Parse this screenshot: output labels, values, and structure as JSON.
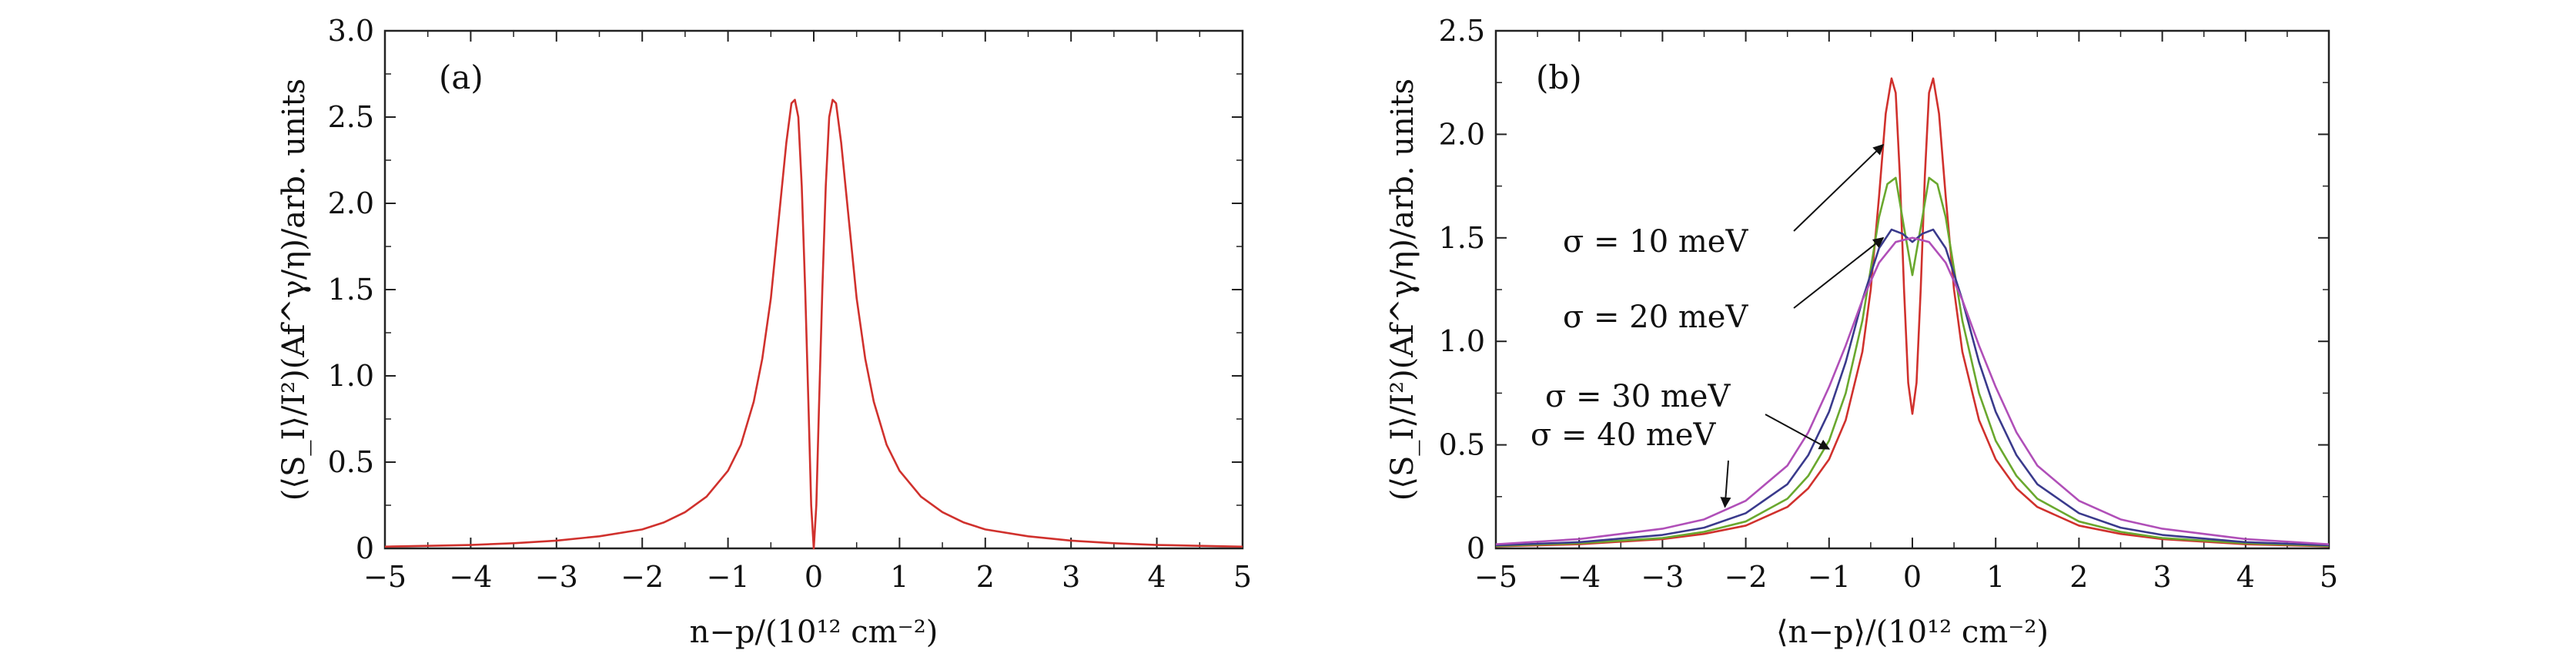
{
  "chart_data": [
    {
      "type": "line",
      "panel_label": "(a)",
      "xlabel": "n−p/(10¹² cm⁻²)",
      "ylabel": "(⟨S_I⟩/I²)(Af^γ/η)/arb. units",
      "xlim": [
        -5,
        5
      ],
      "ylim": [
        0,
        3.0
      ],
      "x_ticks": [
        -5,
        -4,
        -3,
        -2,
        -1,
        0,
        1,
        2,
        3,
        4,
        5
      ],
      "x_tick_labels": [
        "−5",
        "−4",
        "−3",
        "−2",
        "−1",
        "0",
        "1",
        "2",
        "3",
        "4",
        "5"
      ],
      "y_ticks": [
        0,
        0.5,
        1.0,
        1.5,
        2.0,
        2.5,
        3.0
      ],
      "y_tick_labels": [
        "0",
        "0.5",
        "1.0",
        "1.5",
        "2.0",
        "2.5",
        "3.0"
      ],
      "grid": false,
      "series": [
        {
          "color": "#d0312d",
          "x": [
            -5,
            -4.5,
            -4,
            -3.5,
            -3,
            -2.5,
            -2,
            -1.75,
            -1.5,
            -1.25,
            -1,
            -0.85,
            -0.7,
            -0.6,
            -0.5,
            -0.4,
            -0.32,
            -0.26,
            -0.22,
            -0.18,
            -0.14,
            -0.1,
            -0.06,
            -0.03,
            0,
            0.03,
            0.06,
            0.1,
            0.14,
            0.18,
            0.22,
            0.26,
            0.32,
            0.4,
            0.5,
            0.6,
            0.7,
            0.85,
            1,
            1.25,
            1.5,
            1.75,
            2,
            2.5,
            3,
            3.5,
            4,
            4.5,
            5
          ],
          "y": [
            0.01,
            0.015,
            0.02,
            0.03,
            0.045,
            0.07,
            0.11,
            0.15,
            0.21,
            0.3,
            0.45,
            0.6,
            0.85,
            1.1,
            1.45,
            1.95,
            2.35,
            2.58,
            2.6,
            2.5,
            2.1,
            1.5,
            0.8,
            0.25,
            0.0,
            0.25,
            0.8,
            1.5,
            2.1,
            2.5,
            2.6,
            2.58,
            2.35,
            1.95,
            1.45,
            1.1,
            0.85,
            0.6,
            0.45,
            0.3,
            0.21,
            0.15,
            0.11,
            0.07,
            0.045,
            0.03,
            0.02,
            0.015,
            0.01
          ]
        }
      ]
    },
    {
      "type": "line",
      "panel_label": "(b)",
      "xlabel": "⟨n−p⟩/(10¹² cm⁻²)",
      "ylabel": "(⟨S_I⟩/I²)(Af^γ/η)/arb. units",
      "xlim": [
        -5,
        5
      ],
      "ylim": [
        0,
        2.5
      ],
      "x_ticks": [
        -5,
        -4,
        -3,
        -2,
        -1,
        0,
        1,
        2,
        3,
        4,
        5
      ],
      "x_tick_labels": [
        "−5",
        "−4",
        "−3",
        "−2",
        "−1",
        "0",
        "1",
        "2",
        "3",
        "4",
        "5"
      ],
      "y_ticks": [
        0,
        0.5,
        1.0,
        1.5,
        2.0,
        2.5
      ],
      "y_tick_labels": [
        "0",
        "0.5",
        "1.0",
        "1.5",
        "2.0",
        "2.5"
      ],
      "grid": false,
      "series": [
        {
          "name": "σ = 10 meV",
          "color": "#d0312d",
          "x": [
            -5,
            -4,
            -3,
            -2.5,
            -2,
            -1.5,
            -1.25,
            -1,
            -0.8,
            -0.6,
            -0.5,
            -0.4,
            -0.32,
            -0.25,
            -0.2,
            -0.15,
            -0.1,
            -0.05,
            0,
            0.05,
            0.1,
            0.15,
            0.2,
            0.25,
            0.32,
            0.4,
            0.5,
            0.6,
            0.8,
            1,
            1.25,
            1.5,
            2,
            2.5,
            3,
            4,
            5
          ],
          "y": [
            0.01,
            0.02,
            0.045,
            0.07,
            0.11,
            0.2,
            0.29,
            0.43,
            0.62,
            0.95,
            1.25,
            1.7,
            2.1,
            2.27,
            2.2,
            1.8,
            1.25,
            0.8,
            0.65,
            0.8,
            1.25,
            1.8,
            2.2,
            2.27,
            2.1,
            1.7,
            1.25,
            0.95,
            0.62,
            0.43,
            0.29,
            0.2,
            0.11,
            0.07,
            0.045,
            0.02,
            0.01
          ]
        },
        {
          "name": "σ = 20 meV",
          "color": "#6aa82e",
          "x": [
            -5,
            -4,
            -3,
            -2.5,
            -2,
            -1.5,
            -1.25,
            -1,
            -0.8,
            -0.6,
            -0.5,
            -0.4,
            -0.3,
            -0.2,
            -0.1,
            0,
            0.1,
            0.2,
            0.3,
            0.4,
            0.5,
            0.6,
            0.8,
            1,
            1.25,
            1.5,
            2,
            2.5,
            3,
            4,
            5
          ],
          "y": [
            0.012,
            0.025,
            0.05,
            0.08,
            0.13,
            0.24,
            0.35,
            0.52,
            0.75,
            1.1,
            1.35,
            1.6,
            1.76,
            1.79,
            1.55,
            1.32,
            1.55,
            1.79,
            1.76,
            1.6,
            1.35,
            1.1,
            0.75,
            0.52,
            0.35,
            0.24,
            0.13,
            0.08,
            0.05,
            0.025,
            0.012
          ]
        },
        {
          "name": "σ = 30 meV",
          "color": "#3a3a8c",
          "x": [
            -5,
            -4,
            -3,
            -2.5,
            -2,
            -1.5,
            -1.25,
            -1,
            -0.8,
            -0.6,
            -0.4,
            -0.25,
            -0.12,
            0,
            0.12,
            0.25,
            0.4,
            0.6,
            0.8,
            1,
            1.25,
            1.5,
            2,
            2.5,
            3,
            4,
            5
          ],
          "y": [
            0.015,
            0.03,
            0.065,
            0.1,
            0.17,
            0.31,
            0.45,
            0.66,
            0.9,
            1.2,
            1.45,
            1.54,
            1.52,
            1.48,
            1.52,
            1.54,
            1.45,
            1.2,
            0.9,
            0.66,
            0.45,
            0.31,
            0.17,
            0.1,
            0.065,
            0.03,
            0.015
          ]
        },
        {
          "name": "σ = 40 meV",
          "color": "#b04fb8",
          "x": [
            -5,
            -4,
            -3,
            -2.5,
            -2,
            -1.5,
            -1.25,
            -1,
            -0.8,
            -0.6,
            -0.4,
            -0.2,
            0,
            0.2,
            0.4,
            0.6,
            0.8,
            1,
            1.25,
            1.5,
            2,
            2.5,
            3,
            4,
            5
          ],
          "y": [
            0.02,
            0.045,
            0.095,
            0.14,
            0.23,
            0.4,
            0.56,
            0.78,
            0.98,
            1.2,
            1.38,
            1.48,
            1.5,
            1.48,
            1.38,
            1.2,
            0.98,
            0.78,
            0.56,
            0.4,
            0.23,
            0.14,
            0.095,
            0.045,
            0.02
          ]
        }
      ]
    }
  ]
}
